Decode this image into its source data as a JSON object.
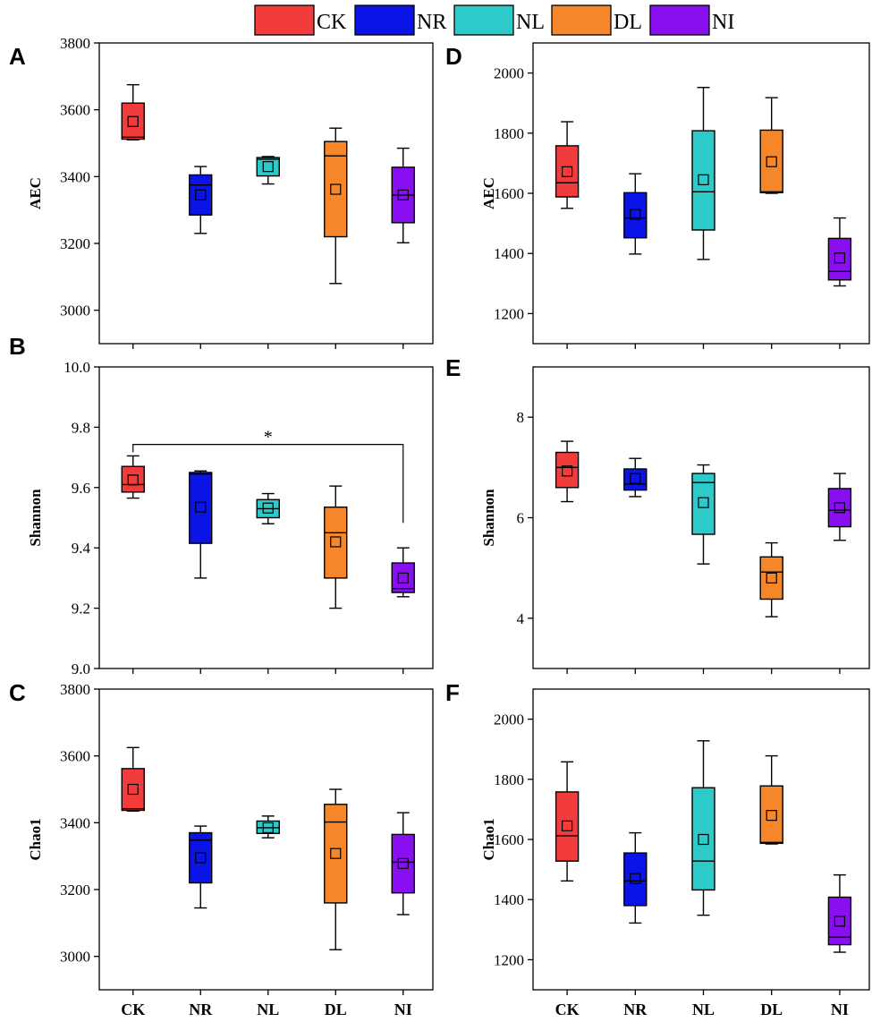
{
  "chart_data": {
    "type": "box",
    "categories": [
      "CK",
      "NR",
      "NL",
      "DL",
      "NI"
    ],
    "colors": {
      "CK": "#f23b3b",
      "NR": "#0a14e6",
      "NL": "#2ec9c9",
      "DL": "#f5872a",
      "NI": "#8a0ff0"
    },
    "legend": {
      "position": "top-center",
      "entries": [
        "CK",
        "NR",
        "NL",
        "DL",
        "NI"
      ]
    },
    "panels": [
      {
        "id": "A",
        "ylabel": "AEC",
        "ylim": [
          2900,
          3800
        ],
        "yticks": [
          3000,
          3200,
          3400,
          3600,
          3800
        ],
        "boxes": [
          {
            "category": "CK",
            "min": 3510,
            "q1": 3512,
            "median": 3518,
            "q3": 3620,
            "max": 3675,
            "mean": 3565
          },
          {
            "category": "NR",
            "min": 3230,
            "q1": 3285,
            "median": 3375,
            "q3": 3405,
            "max": 3430,
            "mean": 3345
          },
          {
            "category": "NL",
            "min": 3378,
            "q1": 3402,
            "median": 3452,
            "q3": 3457,
            "max": 3460,
            "mean": 3430
          },
          {
            "category": "DL",
            "min": 3080,
            "q1": 3220,
            "median": 3462,
            "q3": 3505,
            "max": 3545,
            "mean": 3362
          },
          {
            "category": "NI",
            "min": 3202,
            "q1": 3262,
            "median": 3345,
            "q3": 3428,
            "max": 3485,
            "mean": 3345
          }
        ]
      },
      {
        "id": "B",
        "ylabel": "Shannon",
        "ylim": [
          9.0,
          10.0
        ],
        "yticks": [
          9.0,
          9.2,
          9.4,
          9.6,
          9.8,
          10.0
        ],
        "significance": {
          "from": "CK",
          "to": "NI",
          "label": "*"
        },
        "boxes": [
          {
            "category": "CK",
            "min": 9.565,
            "q1": 9.585,
            "median": 9.61,
            "q3": 9.67,
            "max": 9.705,
            "mean": 9.625
          },
          {
            "category": "NR",
            "min": 9.3,
            "q1": 9.415,
            "median": 9.645,
            "q3": 9.65,
            "max": 9.655,
            "mean": 9.535
          },
          {
            "category": "NL",
            "min": 9.48,
            "q1": 9.5,
            "median": 9.53,
            "q3": 9.56,
            "max": 9.58,
            "mean": 9.532
          },
          {
            "category": "DL",
            "min": 9.2,
            "q1": 9.3,
            "median": 9.45,
            "q3": 9.535,
            "max": 9.605,
            "mean": 9.42
          },
          {
            "category": "NI",
            "min": 9.238,
            "q1": 9.252,
            "median": 9.265,
            "q3": 9.35,
            "max": 9.4,
            "mean": 9.3
          }
        ]
      },
      {
        "id": "C",
        "ylabel": "Chao1",
        "ylim": [
          2900,
          3800
        ],
        "yticks": [
          3000,
          3200,
          3400,
          3600,
          3800
        ],
        "boxes": [
          {
            "category": "CK",
            "min": 3435,
            "q1": 3437,
            "median": 3442,
            "q3": 3562,
            "max": 3625,
            "mean": 3500
          },
          {
            "category": "NR",
            "min": 3145,
            "q1": 3220,
            "median": 3348,
            "q3": 3370,
            "max": 3390,
            "mean": 3295
          },
          {
            "category": "NL",
            "min": 3355,
            "q1": 3368,
            "median": 3385,
            "q3": 3405,
            "max": 3420,
            "mean": 3385
          },
          {
            "category": "DL",
            "min": 3020,
            "q1": 3160,
            "median": 3402,
            "q3": 3455,
            "max": 3500,
            "mean": 3308
          },
          {
            "category": "NI",
            "min": 3125,
            "q1": 3190,
            "median": 3282,
            "q3": 3365,
            "max": 3430,
            "mean": 3278
          }
        ]
      },
      {
        "id": "D",
        "ylabel": "AEC",
        "ylim": [
          1100,
          2100
        ],
        "yticks": [
          1200,
          1400,
          1600,
          1800,
          2000
        ],
        "boxes": [
          {
            "category": "CK",
            "min": 1550,
            "q1": 1588,
            "median": 1635,
            "q3": 1758,
            "max": 1838,
            "mean": 1672
          },
          {
            "category": "NR",
            "min": 1398,
            "q1": 1452,
            "median": 1518,
            "q3": 1602,
            "max": 1665,
            "mean": 1530
          },
          {
            "category": "NL",
            "min": 1380,
            "q1": 1478,
            "median": 1605,
            "q3": 1808,
            "max": 1952,
            "mean": 1645
          },
          {
            "category": "DL",
            "min": 1600,
            "q1": 1602,
            "median": 1605,
            "q3": 1810,
            "max": 1918,
            "mean": 1705
          },
          {
            "category": "NI",
            "min": 1292,
            "q1": 1312,
            "median": 1340,
            "q3": 1450,
            "max": 1518,
            "mean": 1385
          }
        ]
      },
      {
        "id": "E",
        "ylabel": "Shannon",
        "ylim": [
          3.0,
          9.0
        ],
        "yticks": [
          4,
          6,
          8
        ],
        "boxes": [
          {
            "category": "CK",
            "min": 6.32,
            "q1": 6.6,
            "median": 7.0,
            "q3": 7.3,
            "max": 7.52,
            "mean": 6.93
          },
          {
            "category": "NR",
            "min": 6.42,
            "q1": 6.55,
            "median": 6.67,
            "q3": 6.97,
            "max": 7.18,
            "mean": 6.78
          },
          {
            "category": "NL",
            "min": 5.08,
            "q1": 5.67,
            "median": 6.7,
            "q3": 6.88,
            "max": 7.05,
            "mean": 6.3
          },
          {
            "category": "DL",
            "min": 4.03,
            "q1": 4.38,
            "median": 4.92,
            "q3": 5.22,
            "max": 5.5,
            "mean": 4.8
          },
          {
            "category": "NI",
            "min": 5.55,
            "q1": 5.82,
            "median": 6.15,
            "q3": 6.58,
            "max": 6.88,
            "mean": 6.2
          }
        ]
      },
      {
        "id": "F",
        "ylabel": "Chao1",
        "ylim": [
          1100,
          2100
        ],
        "yticks": [
          1200,
          1400,
          1600,
          1800,
          2000
        ],
        "boxes": [
          {
            "category": "CK",
            "min": 1462,
            "q1": 1528,
            "median": 1612,
            "q3": 1758,
            "max": 1858,
            "mean": 1645
          },
          {
            "category": "NR",
            "min": 1322,
            "q1": 1380,
            "median": 1462,
            "q3": 1555,
            "max": 1622,
            "mean": 1470
          },
          {
            "category": "NL",
            "min": 1348,
            "q1": 1432,
            "median": 1528,
            "q3": 1772,
            "max": 1928,
            "mean": 1600
          },
          {
            "category": "DL",
            "min": 1585,
            "q1": 1587,
            "median": 1590,
            "q3": 1778,
            "max": 1878,
            "mean": 1680
          },
          {
            "category": "NI",
            "min": 1225,
            "q1": 1250,
            "median": 1275,
            "q3": 1408,
            "max": 1482,
            "mean": 1328
          }
        ]
      }
    ]
  }
}
